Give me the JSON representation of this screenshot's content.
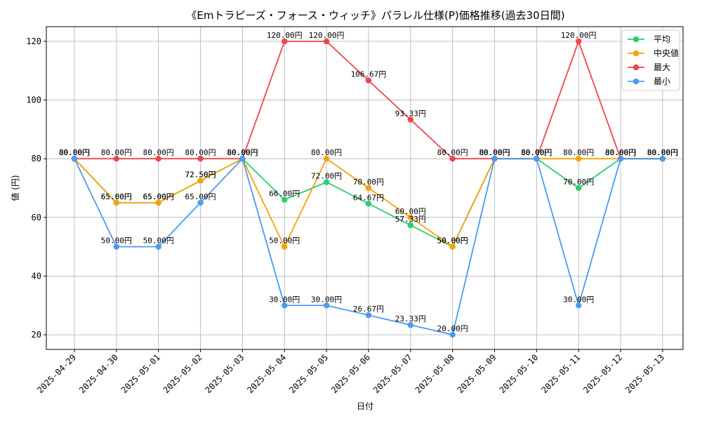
{
  "chart_data": {
    "type": "line",
    "title": "《Emトラピーズ・フォース・ウィッチ》パラレル仕様(P)価格推移(過去30日間)",
    "xlabel": "日付",
    "ylabel": "値 (円)",
    "ylim": [
      15,
      125
    ],
    "yticks": [
      20,
      40,
      60,
      80,
      100,
      120
    ],
    "grid": true,
    "legend_position": "top-right",
    "label_suffix": "円",
    "categories": [
      "2025-04-29",
      "2025-04-30",
      "2025-05-01",
      "2025-05-02",
      "2025-05-03",
      "2025-05-04",
      "2025-05-05",
      "2025-05-06",
      "2025-05-07",
      "2025-05-08",
      "2025-05-09",
      "2025-05-10",
      "2025-05-11",
      "2025-05-12",
      "2025-05-13"
    ],
    "series": [
      {
        "name": "平均",
        "color": "#2ecc71",
        "values": [
          80.0,
          65.0,
          65.0,
          72.5,
          80.0,
          66.0,
          72.0,
          64.67,
          57.33,
          50.0,
          80.0,
          80.0,
          70.0,
          80.0,
          80.0
        ]
      },
      {
        "name": "中央値",
        "color": "#f5a20a",
        "values": [
          80.0,
          65.0,
          65.0,
          72.5,
          80.0,
          50.0,
          80.0,
          70.0,
          60.0,
          50.0,
          80.0,
          80.0,
          80.0,
          80.0,
          80.0
        ]
      },
      {
        "name": "最大",
        "color": "#f0464b",
        "values": [
          80.0,
          80.0,
          80.0,
          80.0,
          80.0,
          120.0,
          120.0,
          106.67,
          93.33,
          80.0,
          80.0,
          80.0,
          120.0,
          80.0,
          80.0
        ]
      },
      {
        "name": "最小",
        "color": "#4b9bef",
        "values": [
          80.0,
          50.0,
          50.0,
          65.0,
          80.0,
          30.0,
          30.0,
          26.67,
          23.33,
          20.0,
          80.0,
          80.0,
          30.0,
          80.0,
          80.0
        ]
      }
    ]
  }
}
